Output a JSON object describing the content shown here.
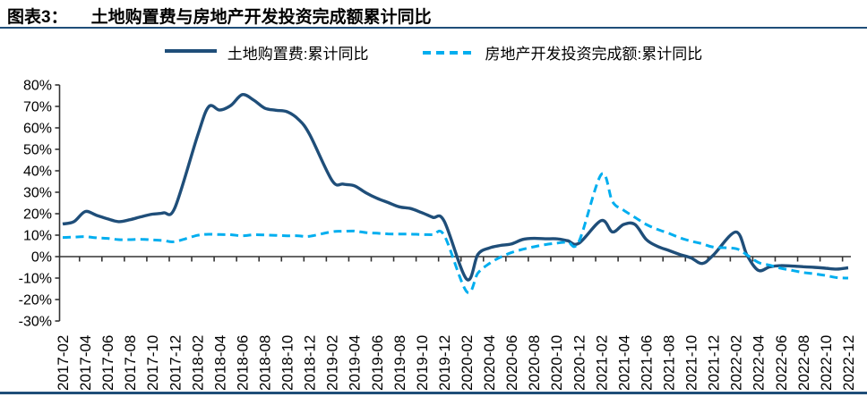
{
  "title": {
    "prefix": "图表3：",
    "text": "土地购置费与房地产开发投资完成额累计同比"
  },
  "legend": [
    {
      "label": "土地购置费:累计同比",
      "color": "#1f4e79",
      "style": "solid"
    },
    {
      "label": "房地产开发投资完成额:累计同比",
      "color": "#00aeef",
      "style": "dashed"
    }
  ],
  "colors": {
    "accent_rule": "#1f4e79",
    "axis": "#333333",
    "text": "#000000"
  },
  "chart_data": {
    "type": "line",
    "title": "土地购置费与房地产开发投资完成额累计同比",
    "xlabel": "",
    "ylabel": "",
    "ylim": [
      -30,
      80
    ],
    "grid": false,
    "legend_position": "top",
    "y_tick_labels": [
      "80%",
      "70%",
      "60%",
      "50%",
      "40%",
      "30%",
      "20%",
      "10%",
      "0%",
      "-10%",
      "-20%",
      "-30%"
    ],
    "y_tick_values": [
      80,
      70,
      60,
      50,
      40,
      30,
      20,
      10,
      0,
      -10,
      -20,
      -30
    ],
    "x_tick_labels": [
      "2017-02",
      "2017-04",
      "2017-06",
      "2017-08",
      "2017-10",
      "2017-12",
      "2018-02",
      "2018-04",
      "2018-06",
      "2018-08",
      "2018-10",
      "2018-12",
      "2019-02",
      "2019-04",
      "2019-06",
      "2019-08",
      "2019-10",
      "2019-12",
      "2020-02",
      "2020-04",
      "2020-06",
      "2020-08",
      "2020-10",
      "2020-12",
      "2021-02",
      "2021-04",
      "2021-06",
      "2021-08",
      "2021-10",
      "2021-12",
      "2022-02",
      "2022-04",
      "2022-06",
      "2022-08",
      "2022-10",
      "2022-12"
    ],
    "series": [
      {
        "name": "土地购置费:累计同比",
        "color": "#1f4e79",
        "dash": false,
        "points": [
          [
            "2017-02",
            15.2
          ],
          [
            "2017-03",
            16.3
          ],
          [
            "2017-04",
            21.0
          ],
          [
            "2017-05",
            19.3
          ],
          [
            "2017-06",
            17.6
          ],
          [
            "2017-07",
            16.3
          ],
          [
            "2017-08",
            17.2
          ],
          [
            "2017-09",
            18.6
          ],
          [
            "2017-10",
            19.8
          ],
          [
            "2017-11",
            20.4
          ],
          [
            "2017-12",
            22.8
          ],
          [
            "2018-02",
            56.0
          ],
          [
            "2018-03",
            69.8
          ],
          [
            "2018-04",
            68.3
          ],
          [
            "2018-05",
            70.5
          ],
          [
            "2018-06",
            75.5
          ],
          [
            "2018-07",
            73.0
          ],
          [
            "2018-08",
            69.2
          ],
          [
            "2018-09",
            68.2
          ],
          [
            "2018-10",
            67.5
          ],
          [
            "2018-11",
            64.0
          ],
          [
            "2018-12",
            57.0
          ],
          [
            "2019-02",
            35.5
          ],
          [
            "2019-03",
            33.8
          ],
          [
            "2019-04",
            33.0
          ],
          [
            "2019-05",
            29.8
          ],
          [
            "2019-06",
            27.2
          ],
          [
            "2019-07",
            25.2
          ],
          [
            "2019-08",
            23.2
          ],
          [
            "2019-09",
            22.4
          ],
          [
            "2019-10",
            20.5
          ],
          [
            "2019-11",
            18.3
          ],
          [
            "2019-12",
            16.5
          ],
          [
            "2020-02",
            -10.5
          ],
          [
            "2020-03",
            1.0
          ],
          [
            "2020-04",
            4.0
          ],
          [
            "2020-05",
            5.2
          ],
          [
            "2020-06",
            5.9
          ],
          [
            "2020-07",
            8.0
          ],
          [
            "2020-08",
            8.5
          ],
          [
            "2020-09",
            8.3
          ],
          [
            "2020-10",
            8.3
          ],
          [
            "2020-11",
            7.4
          ],
          [
            "2020-12",
            6.2
          ],
          [
            "2021-02",
            16.8
          ],
          [
            "2021-03",
            11.5
          ],
          [
            "2021-04",
            15.0
          ],
          [
            "2021-05",
            15.0
          ],
          [
            "2021-06",
            8.0
          ],
          [
            "2021-07",
            4.8
          ],
          [
            "2021-08",
            2.9
          ],
          [
            "2021-09",
            1.0
          ],
          [
            "2021-10",
            -0.6
          ],
          [
            "2021-11",
            -3.2
          ],
          [
            "2021-12",
            0.8
          ],
          [
            "2022-02",
            11.5
          ],
          [
            "2022-03",
            0.5
          ],
          [
            "2022-04",
            -6.4
          ],
          [
            "2022-05",
            -4.8
          ],
          [
            "2022-06",
            -4.2
          ],
          [
            "2022-07",
            -4.4
          ],
          [
            "2022-08",
            -4.7
          ],
          [
            "2022-09",
            -5.0
          ],
          [
            "2022-10",
            -5.4
          ],
          [
            "2022-11",
            -5.8
          ],
          [
            "2022-12",
            -5.2
          ]
        ]
      },
      {
        "name": "房地产开发投资完成额:累计同比",
        "color": "#00aeef",
        "dash": true,
        "points": [
          [
            "2017-02",
            8.9
          ],
          [
            "2017-03",
            9.1
          ],
          [
            "2017-04",
            9.3
          ],
          [
            "2017-05",
            8.8
          ],
          [
            "2017-06",
            8.5
          ],
          [
            "2017-07",
            7.9
          ],
          [
            "2017-08",
            7.9
          ],
          [
            "2017-09",
            8.1
          ],
          [
            "2017-10",
            7.8
          ],
          [
            "2017-11",
            7.5
          ],
          [
            "2017-12",
            7.0
          ],
          [
            "2018-02",
            9.9
          ],
          [
            "2018-03",
            10.4
          ],
          [
            "2018-04",
            10.3
          ],
          [
            "2018-05",
            10.2
          ],
          [
            "2018-06",
            9.7
          ],
          [
            "2018-07",
            10.2
          ],
          [
            "2018-08",
            10.1
          ],
          [
            "2018-09",
            9.9
          ],
          [
            "2018-10",
            9.7
          ],
          [
            "2018-11",
            9.7
          ],
          [
            "2018-12",
            9.5
          ],
          [
            "2019-02",
            11.6
          ],
          [
            "2019-03",
            11.8
          ],
          [
            "2019-04",
            11.9
          ],
          [
            "2019-05",
            11.2
          ],
          [
            "2019-06",
            10.9
          ],
          [
            "2019-07",
            10.6
          ],
          [
            "2019-08",
            10.5
          ],
          [
            "2019-09",
            10.5
          ],
          [
            "2019-10",
            10.3
          ],
          [
            "2019-11",
            10.2
          ],
          [
            "2019-12",
            9.9
          ],
          [
            "2020-02",
            -16.3
          ],
          [
            "2020-03",
            -7.7
          ],
          [
            "2020-04",
            -3.3
          ],
          [
            "2020-05",
            -0.3
          ],
          [
            "2020-06",
            1.9
          ],
          [
            "2020-07",
            3.4
          ],
          [
            "2020-08",
            4.6
          ],
          [
            "2020-09",
            5.6
          ],
          [
            "2020-10",
            6.3
          ],
          [
            "2020-11",
            6.8
          ],
          [
            "2020-12",
            7.0
          ],
          [
            "2021-02",
            38.3
          ],
          [
            "2021-03",
            25.6
          ],
          [
            "2021-04",
            21.6
          ],
          [
            "2021-05",
            18.3
          ],
          [
            "2021-06",
            15.0
          ],
          [
            "2021-07",
            12.7
          ],
          [
            "2021-08",
            10.9
          ],
          [
            "2021-09",
            8.8
          ],
          [
            "2021-10",
            7.2
          ],
          [
            "2021-11",
            6.0
          ],
          [
            "2021-12",
            4.4
          ],
          [
            "2022-02",
            3.7
          ],
          [
            "2022-03",
            0.7
          ],
          [
            "2022-04",
            -2.7
          ],
          [
            "2022-05",
            -4.0
          ],
          [
            "2022-06",
            -5.4
          ],
          [
            "2022-07",
            -6.4
          ],
          [
            "2022-08",
            -7.4
          ],
          [
            "2022-09",
            -8.0
          ],
          [
            "2022-10",
            -8.8
          ],
          [
            "2022-11",
            -9.8
          ],
          [
            "2022-12",
            -10.0
          ]
        ]
      }
    ]
  }
}
